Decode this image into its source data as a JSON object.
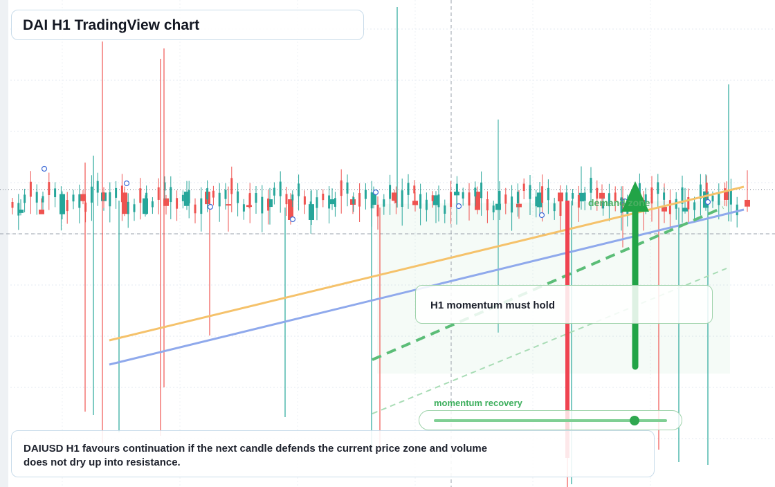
{
  "title": "DAI H1 TradingView chart",
  "callout": "H1 momentum must hold",
  "zone_label": "demand zone",
  "momentum": {
    "label": "momentum recovery",
    "value": 0.86
  },
  "footer": "DAIUSD H1 favours continuation if the next candle defends the current price zone and volume does not dry up into resistance.",
  "colors": {
    "up": "#26a69a",
    "down": "#ef5350",
    "trend_orange": "#f5c26b",
    "trend_blue": "#8fa9ec",
    "zone_green": "#3cae5c",
    "arrow": "#22a447",
    "grid": "#e3e9f0"
  },
  "chart_data": {
    "type": "candlestick",
    "timeframe": "H1",
    "symbol": "DAIUSD",
    "note": "Price and time axes are not printed; values are expressed in a 0–100 relative price scale.",
    "ylim": [
      0,
      100
    ],
    "candles": [
      {
        "o": 57.3,
        "h": 61.8,
        "l": 56.5,
        "c": 58.4
      },
      {
        "o": 58.4,
        "h": 62.1,
        "l": 57.0,
        "c": 56.9
      },
      {
        "o": 56.9,
        "h": 64.4,
        "l": 55.2,
        "c": 63.5
      },
      {
        "o": 63.5,
        "h": 64.8,
        "l": 60.2,
        "c": 61.2
      },
      {
        "o": 61.2,
        "h": 64.9,
        "l": 58.0,
        "c": 64.0
      },
      {
        "o": 64.0,
        "h": 66.0,
        "l": 56.3,
        "c": 57.0
      },
      {
        "o": 57.0,
        "h": 63.1,
        "l": 56.1,
        "c": 62.1
      },
      {
        "o": 62.1,
        "h": 63.2,
        "l": 56.8,
        "c": 59.6
      },
      {
        "o": 59.6,
        "h": 67.8,
        "l": 58.3,
        "c": 64.3
      },
      {
        "o": 64.3,
        "h": 65.6,
        "l": 59.0,
        "c": 60.2
      },
      {
        "o": 60.2,
        "h": 66.0,
        "l": 51.2,
        "c": 59.9
      },
      {
        "o": 59.9,
        "h": 63.4,
        "l": 58.8,
        "c": 59.3
      },
      {
        "o": 59.3,
        "h": 65.5,
        "l": 53.5,
        "c": 61.8
      },
      {
        "o": 61.8,
        "h": 63.8,
        "l": 53.5,
        "c": 55.0
      },
      {
        "o": 55.0,
        "h": 65.0,
        "l": 53.4,
        "c": 60.2
      },
      {
        "o": 60.2,
        "h": 65.4,
        "l": 58.3,
        "c": 61.8
      },
      {
        "o": 61.8,
        "h": 62.9,
        "l": 57.0,
        "c": 60.0
      },
      {
        "o": 60.0,
        "h": 66.0,
        "l": 58.8,
        "c": 64.0
      },
      {
        "o": 64.0,
        "h": 65.0,
        "l": 60.4,
        "c": 61.3
      },
      {
        "o": 61.3,
        "h": 64.2,
        "l": 57.8,
        "c": 59.9
      },
      {
        "o": 59.9,
        "h": 64.5,
        "l": 54.0,
        "c": 63.1
      },
      {
        "o": 63.1,
        "h": 65.9,
        "l": 53.5,
        "c": 64.3
      },
      {
        "o": 64.3,
        "h": 66.0,
        "l": 56.9,
        "c": 58.3
      },
      {
        "o": 58.3,
        "h": 88.0,
        "l": 18.0,
        "c": 60.3
      },
      {
        "o": 60.3,
        "h": 64.8,
        "l": 55.4,
        "c": 59.2
      },
      {
        "o": 59.2,
        "h": 67.5,
        "l": 56.8,
        "c": 64.0
      },
      {
        "o": 64.0,
        "h": 66.4,
        "l": 57.2,
        "c": 61.1
      },
      {
        "o": 61.1,
        "h": 72.6,
        "l": 58.4,
        "c": 63.9
      },
      {
        "o": 63.9,
        "h": 66.7,
        "l": 58.8,
        "c": 62.0
      },
      {
        "o": 62.0,
        "h": 66.1,
        "l": 46.0,
        "c": 61.6
      },
      {
        "o": 61.6,
        "h": 64.5,
        "l": 51.5,
        "c": 59.3
      },
      {
        "o": 59.3,
        "h": 67.0,
        "l": 54.0,
        "c": 57.8
      },
      {
        "o": 57.8,
        "h": 65.5,
        "l": 57.1,
        "c": 59.0
      },
      {
        "o": 59.0,
        "h": 70.0,
        "l": 58.0,
        "c": 64.4
      },
      {
        "o": 64.4,
        "h": 67.7,
        "l": 59.5,
        "c": 61.6
      },
      {
        "o": 61.6,
        "h": 71.3,
        "l": 57.7,
        "c": 59.4
      }
    ]
  }
}
